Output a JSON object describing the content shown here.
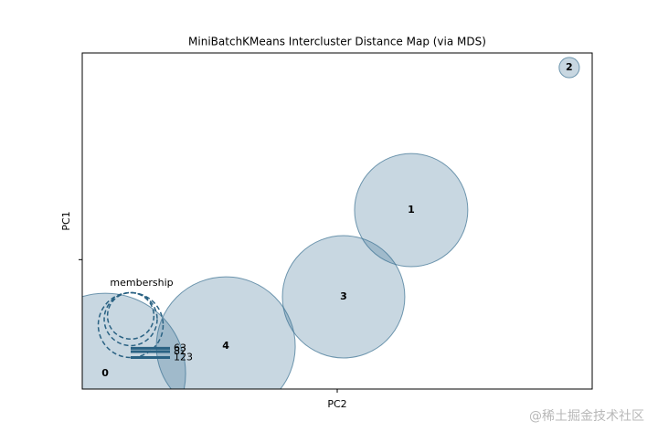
{
  "chart_data": {
    "type": "bubble",
    "title": "MiniBatchKMeans Intercluster Distance Map (via MDS)",
    "xlabel": "PC2",
    "ylabel": "PC1",
    "labels": [
      "0",
      "1",
      "2",
      "3",
      "4"
    ],
    "x": [
      -0.91,
      0.29,
      0.91,
      0.025,
      -0.437
    ],
    "y": [
      -0.678,
      0.295,
      1.143,
      -0.221,
      -0.515
    ],
    "sizes": [
      756,
      375,
      12,
      438,
      564
    ],
    "color": "#3a7192",
    "xlim": [
      -1,
      1
    ],
    "ylim": [
      -0.77,
      1.23
    ],
    "xticks": [
      0
    ],
    "yticks": [
      0
    ],
    "legend": {
      "title": "membership",
      "sizes": [
        63,
        82,
        123
      ],
      "color": "#2a6283"
    }
  },
  "watermark": "@稀土掘金技术社区"
}
